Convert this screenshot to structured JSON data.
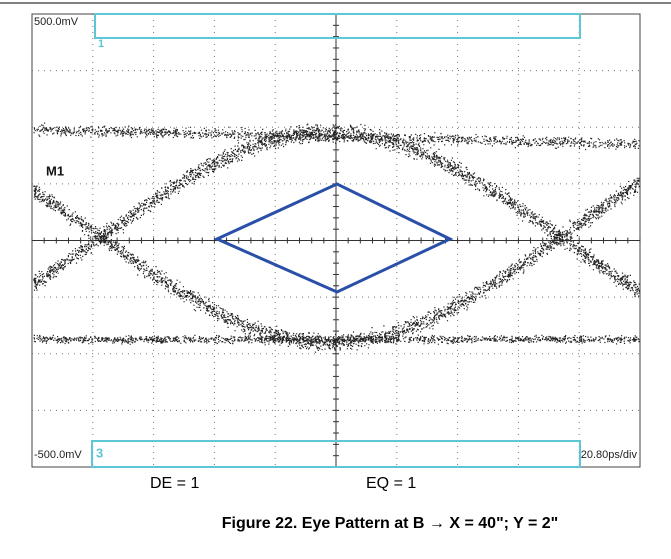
{
  "screen": {
    "top_label": "500.0mV",
    "ch1_marker": "1",
    "marker_label": "M1",
    "bottom_label": "-500.0mV",
    "ch3_marker": "3",
    "timebase": "20.80ps/div"
  },
  "labels": {
    "de": "DE = 1",
    "eq": "EQ = 1"
  },
  "caption": "Figure 22. Eye Pattern at B → X = 40\"; Y = 2\""
}
